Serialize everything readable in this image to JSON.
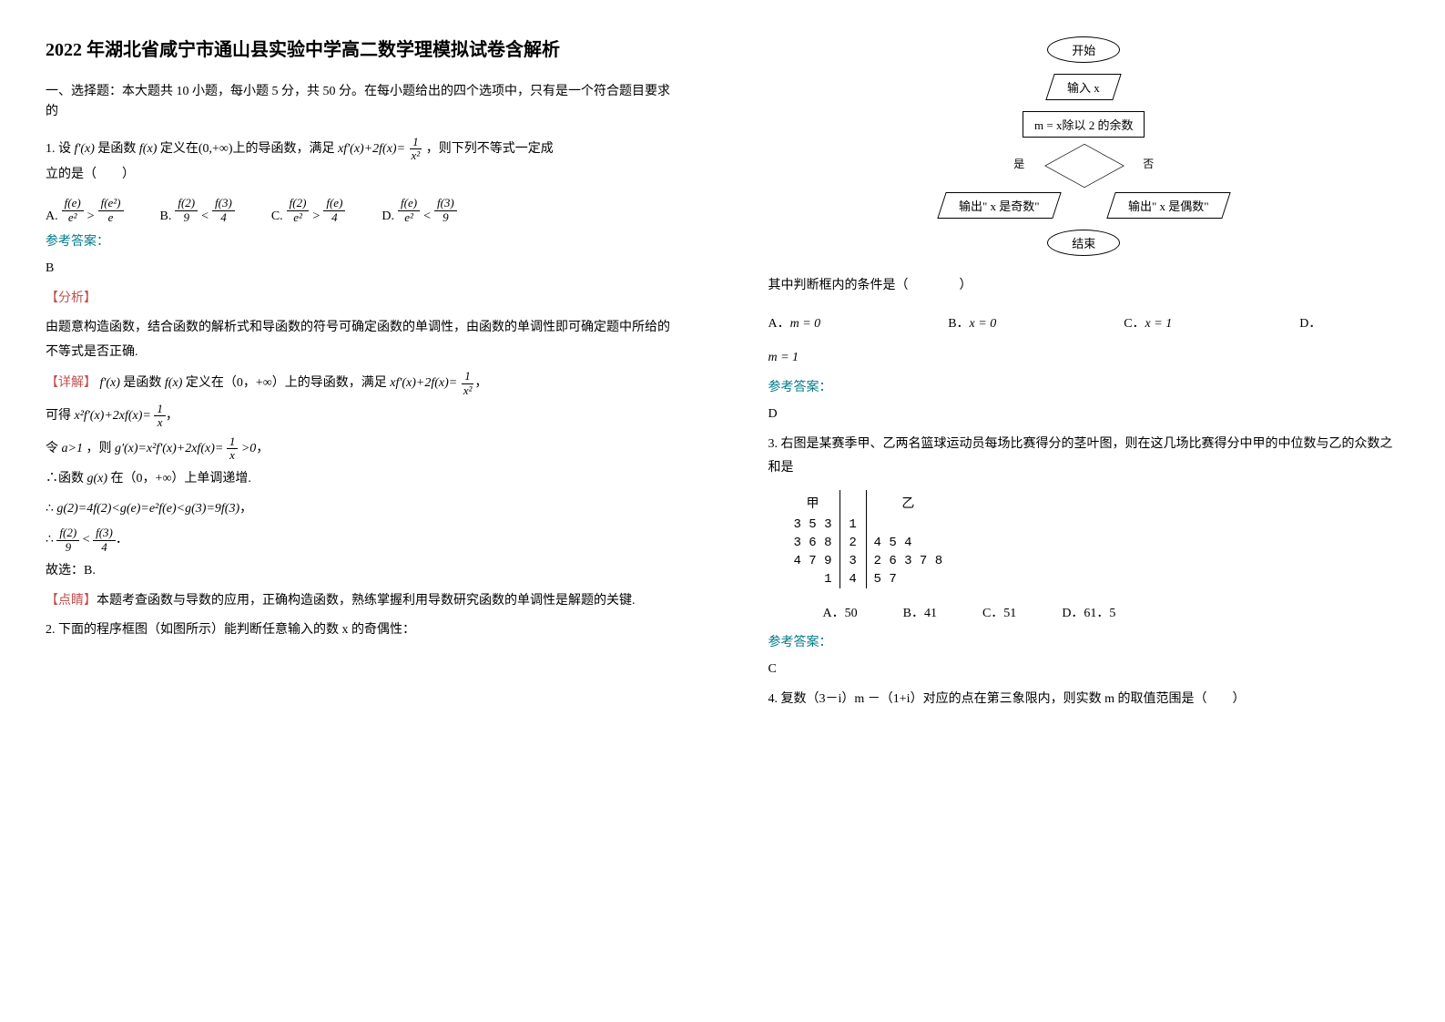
{
  "title": "2022 年湖北省咸宁市通山县实验中学高二数学理模拟试卷含解析",
  "section1": "一、选择题：本大题共 10 小题，每小题 5 分，共 50 分。在每小题给出的四个选项中，只有是一个符合题目要求的",
  "q1": {
    "stem_a": "1. 设",
    "stem_b": "是函数",
    "stem_c": "定义在(0,+∞)上的导函数，满足",
    "stem_d": "，则下列不等式一定成",
    "stem_e": "立的是（　　）",
    "fprimex": "f'(x)",
    "fx": "f(x)",
    "eq_l": "xf'(x)+2f(x)=",
    "optA": "A.",
    "optB": "B.",
    "optC": "C.",
    "optD": "D.",
    "A_l_num": "f(e)",
    "A_l_den": "e²",
    "A_gt": ">",
    "A_r_num": "f(e²)",
    "A_r_den": "e",
    "B_l_num": "f(2)",
    "B_l_den": "9",
    "B_lt": "<",
    "B_r_num": "f(3)",
    "B_r_den": "4",
    "C_l_num": "f(2)",
    "C_l_den": "e²",
    "C_gt": ">",
    "C_r_num": "f(e)",
    "C_r_den": "4",
    "D_l_num": "f(e)",
    "D_l_den": "e²",
    "D_lt": "<",
    "D_r_num": "f(3)",
    "D_r_den": "9",
    "ans_label": "参考答案：",
    "ans": "B",
    "ana_label": "【分析】",
    "ana1": "由题意构造函数，结合函数的解析式和导函数的符号可确定函数的单调性，由函数的单调性即可确定题中所给的不等式是否正确.",
    "detail_label": "【详解】",
    "d1a": "是函数",
    "d1b": "定义在（0，+∞）上的导函数，满足",
    "d2": "可得",
    "d2eq": "x²f'(x)+2xf(x)=",
    "d3a": "令",
    "d3b": "a>1",
    "d3c": "，则",
    "d3eq": "g'(x)=x²f'(x)+2xf(x)=",
    "d3gt": ">0",
    "d4a": "∴函数",
    "d4b": "g(x)",
    "d4c": "在（0，+∞）上单调递增.",
    "d5": "∴",
    "d5eq": "g(2)=4f(2)<g(e)=e²f(e)<g(3)=9f(3)",
    "d6": "∴",
    "d6_l_num": "f(2)",
    "d6_l_den": "9",
    "d6_lt": "<",
    "d6_r_num": "f(3)",
    "d6_r_den": "4",
    "d7": "故选：B.",
    "pj_label": "【点睛】",
    "pj": "本题考查函数与导数的应用，正确构造函数，熟练掌握利用导数研究函数的单调性是解题的关键."
  },
  "q2": {
    "stem": "2. 下面的程序框图（如图所示）能判断任意输入的数 x 的奇偶性：",
    "fc_start": "开始",
    "fc_input": "输入 x",
    "fc_calc": "m = x除以 2 的余数",
    "fc_yes": "是",
    "fc_no": "否",
    "fc_out1": "输出\" x 是奇数\"",
    "fc_out2": "输出\" x 是偶数\"",
    "fc_end": "结束",
    "cond": "其中判断框内的条件是（　　　　）",
    "A": "A．",
    "Aval": "m = 0",
    "B": "B．",
    "Bval": "x = 0",
    "C": "C．",
    "Cval": "x = 1",
    "D": "D．",
    "Dval": "m = 1",
    "ans_label": "参考答案：",
    "ans": "D"
  },
  "q3": {
    "stem": "3. 右图是某赛季甲、乙两名篮球运动员每场比赛得分的茎叶图，则在这几场比赛得分中甲的中位数与乙的众数之和是",
    "h1": "甲",
    "h2": "",
    "h3": "乙",
    "r1": [
      "3 5 3",
      "1",
      ""
    ],
    "r2": [
      "3 6 8",
      "2",
      "4 5 4"
    ],
    "r3": [
      "4 7 9",
      "3",
      "2 6 3 7 8"
    ],
    "r4": [
      "1",
      "4",
      "5 7"
    ],
    "A": "A．50",
    "B": "B．41",
    "C": "C．51",
    "D": "D．61．5",
    "ans_label": "参考答案：",
    "ans": "C"
  },
  "q4": {
    "stem": "4. 复数（3－i）m －（1+i）对应的点在第三象限内，则实数 m 的取值范围是（　　）"
  },
  "one": "1",
  "x": "x",
  "x2": "x²"
}
